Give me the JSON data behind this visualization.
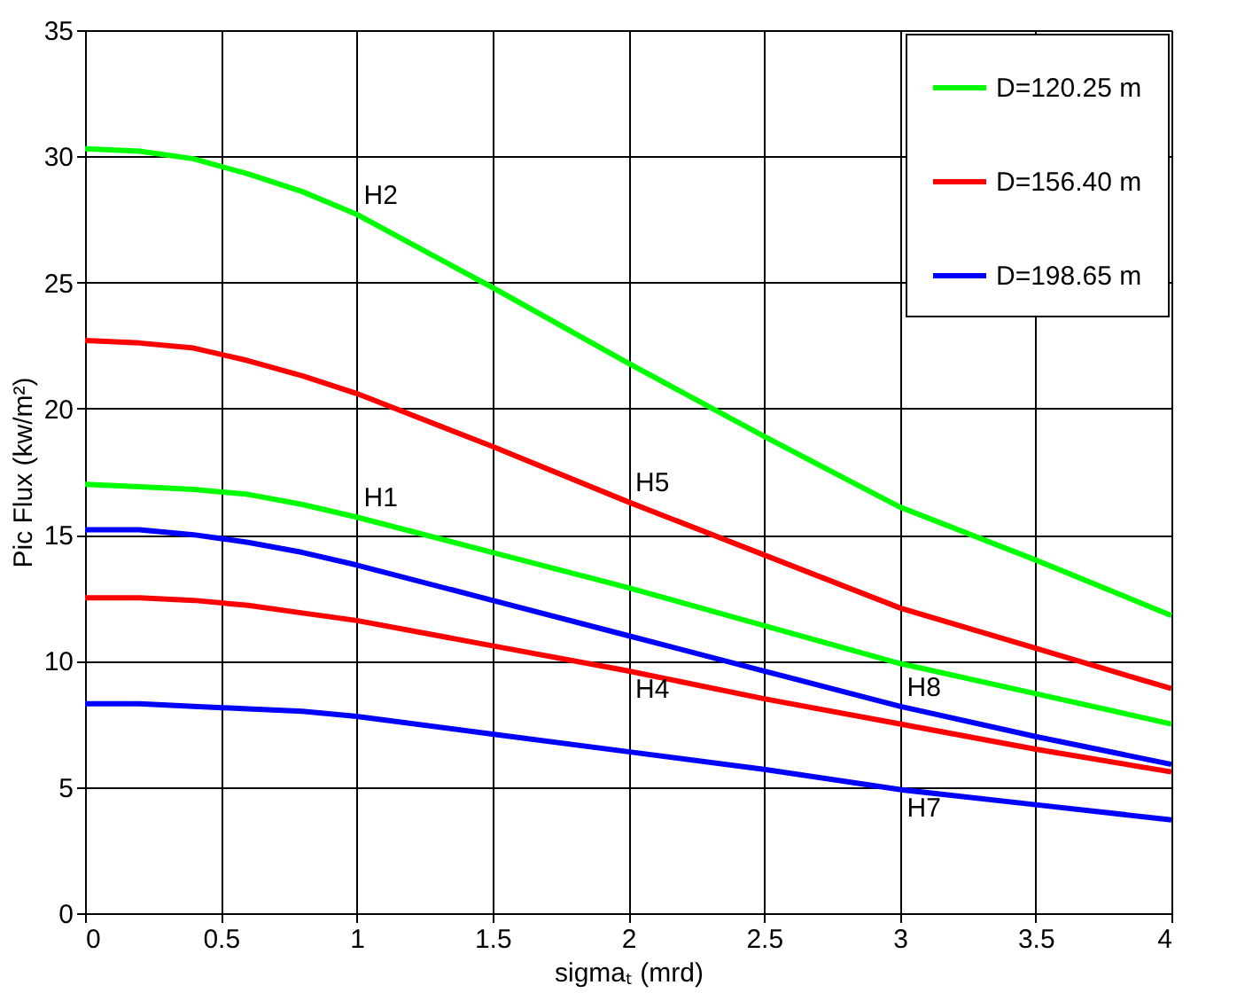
{
  "chart_data": {
    "type": "line",
    "xlabel": "sigmaₜ (mrd)",
    "ylabel": "Pic Flux (kw/m²)",
    "x": [
      0,
      0.2,
      0.4,
      0.6,
      0.8,
      1,
      1.5,
      2,
      2.5,
      3,
      3.5,
      4
    ],
    "series": [
      {
        "name": "D=120.25 m",
        "color": "#00ff00",
        "values": [
          30.3,
          30.2,
          29.9,
          29.3,
          28.6,
          27.7,
          24.8,
          21.8,
          18.9,
          16.1,
          14.0,
          11.8
        ]
      },
      {
        "name": "D=156.40 m",
        "color": "#ff0000",
        "values": [
          22.7,
          22.6,
          22.4,
          21.9,
          21.3,
          20.6,
          18.5,
          16.3,
          14.2,
          12.1,
          10.5,
          8.9
        ]
      },
      {
        "name": "D=198.65 m",
        "color": "#0000ff",
        "values": [
          15.2,
          15.2,
          15.0,
          14.7,
          14.3,
          13.8,
          12.4,
          11.0,
          9.6,
          8.2,
          7.0,
          5.9
        ]
      },
      {
        "color": "#00ff00",
        "values": [
          17.0,
          16.9,
          16.8,
          16.6,
          16.2,
          15.7,
          14.3,
          12.9,
          11.4,
          9.9,
          8.7,
          7.5
        ]
      },
      {
        "color": "#ff0000",
        "values": [
          12.5,
          12.5,
          12.4,
          12.2,
          11.9,
          11.6,
          10.6,
          9.6,
          8.5,
          7.5,
          6.5,
          5.6
        ]
      },
      {
        "color": "#0000ff",
        "values": [
          8.3,
          8.3,
          8.2,
          8.1,
          8.0,
          7.8,
          7.1,
          6.4,
          5.7,
          4.9,
          4.3,
          3.7
        ]
      }
    ],
    "annotations": [
      {
        "text": "H2",
        "x": 1,
        "y": 27.7
      },
      {
        "text": "H1",
        "x": 1,
        "y": 15.7
      },
      {
        "text": "H5",
        "x": 2,
        "y": 16.3
      },
      {
        "text": "H4",
        "x": 2,
        "y": 9.6
      },
      {
        "text": "H8",
        "x": 3,
        "y": 8.2
      },
      {
        "text": "H7",
        "x": 3,
        "y": 4.9
      }
    ],
    "xlim": [
      0,
      4
    ],
    "xticks": [
      0,
      0.5,
      1,
      1.5,
      2,
      2.5,
      3,
      3.5,
      4
    ],
    "ylim": [
      0,
      35
    ],
    "yticks": [
      0,
      5,
      10,
      15,
      20,
      25,
      30,
      35
    ],
    "grid": true,
    "legend": "top right",
    "marker": "none",
    "line_style": "solid"
  }
}
